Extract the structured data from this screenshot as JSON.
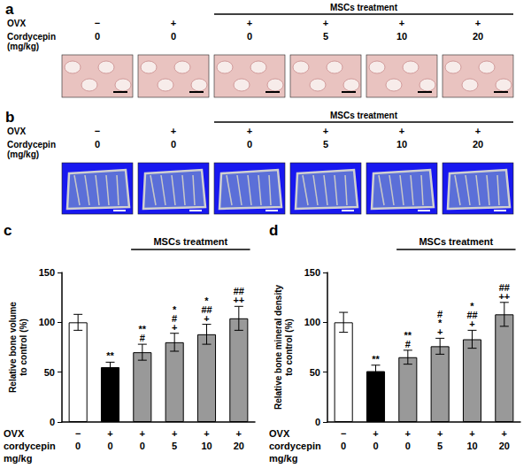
{
  "image_panels": [
    {
      "letter": "a",
      "header": "MSCs treatment",
      "header_span": [
        2,
        5
      ],
      "rows": [
        {
          "label": "OVX",
          "values": [
            "−",
            "+",
            "+",
            "+",
            "+",
            "+"
          ]
        },
        {
          "label": "Cordycepin\n(mg/kg)",
          "values": [
            "0",
            "0",
            "0",
            "5",
            "10",
            "20"
          ]
        }
      ]
    },
    {
      "letter": "b",
      "header": "MSCs treatment",
      "header_span": [
        2,
        5
      ],
      "rows": [
        {
          "label": "OVX",
          "values": [
            "−",
            "+",
            "+",
            "+",
            "+",
            "+"
          ]
        },
        {
          "label": "Cordycepin\n(mg/kg)",
          "values": [
            "0",
            "0",
            "0",
            "5",
            "10",
            "20"
          ]
        }
      ]
    }
  ],
  "chart_data": [
    {
      "letter": "c",
      "type": "bar",
      "header": "MSCs treatment",
      "header_span": [
        2,
        5
      ],
      "y_label": "Relative bone volume\nto control (%)",
      "row_labels": [
        "OVX",
        "cordycepin\nmg/kg"
      ],
      "ovx": [
        "−",
        "+",
        "+",
        "+",
        "+",
        "+"
      ],
      "categories": [
        "0",
        "0",
        "0",
        "5",
        "10",
        "20"
      ],
      "values": [
        100,
        55,
        70,
        80,
        88,
        104
      ],
      "errors": [
        8,
        5,
        8,
        9,
        10,
        12
      ],
      "annotations": [
        [],
        [
          "**"
        ],
        [
          "**",
          "#"
        ],
        [
          "*",
          "#",
          "+"
        ],
        [
          "*",
          "##",
          "+"
        ],
        [
          "##",
          "++"
        ]
      ],
      "colors": [
        "#ffffff",
        "#000000",
        "#999999",
        "#999999",
        "#999999",
        "#999999"
      ],
      "ylim": [
        0,
        150
      ],
      "yticks": [
        0,
        50,
        100,
        150
      ],
      "grid": false
    },
    {
      "letter": "d",
      "type": "bar",
      "header": "MSCs treatment",
      "header_span": [
        2,
        5
      ],
      "y_label": "Relative bone mineral density\nto control (%)",
      "row_labels": [
        "OVX",
        "cordycepin\nmg/kg"
      ],
      "ovx": [
        "−",
        "+",
        "+",
        "+",
        "+",
        "+"
      ],
      "categories": [
        "0",
        "0",
        "0",
        "5",
        "10",
        "20"
      ],
      "values": [
        100,
        51,
        65,
        76,
        83,
        108
      ],
      "errors": [
        10,
        6,
        7,
        8,
        9,
        12
      ],
      "annotations": [
        [],
        [
          "**"
        ],
        [
          "**",
          "#"
        ],
        [
          "#",
          "*",
          "+"
        ],
        [
          "*",
          "##",
          "+"
        ],
        [
          "##",
          "++"
        ]
      ],
      "colors": [
        "#ffffff",
        "#000000",
        "#999999",
        "#999999",
        "#999999",
        "#999999"
      ],
      "ylim": [
        0,
        150
      ],
      "yticks": [
        0,
        50,
        100,
        150
      ],
      "grid": false
    }
  ]
}
